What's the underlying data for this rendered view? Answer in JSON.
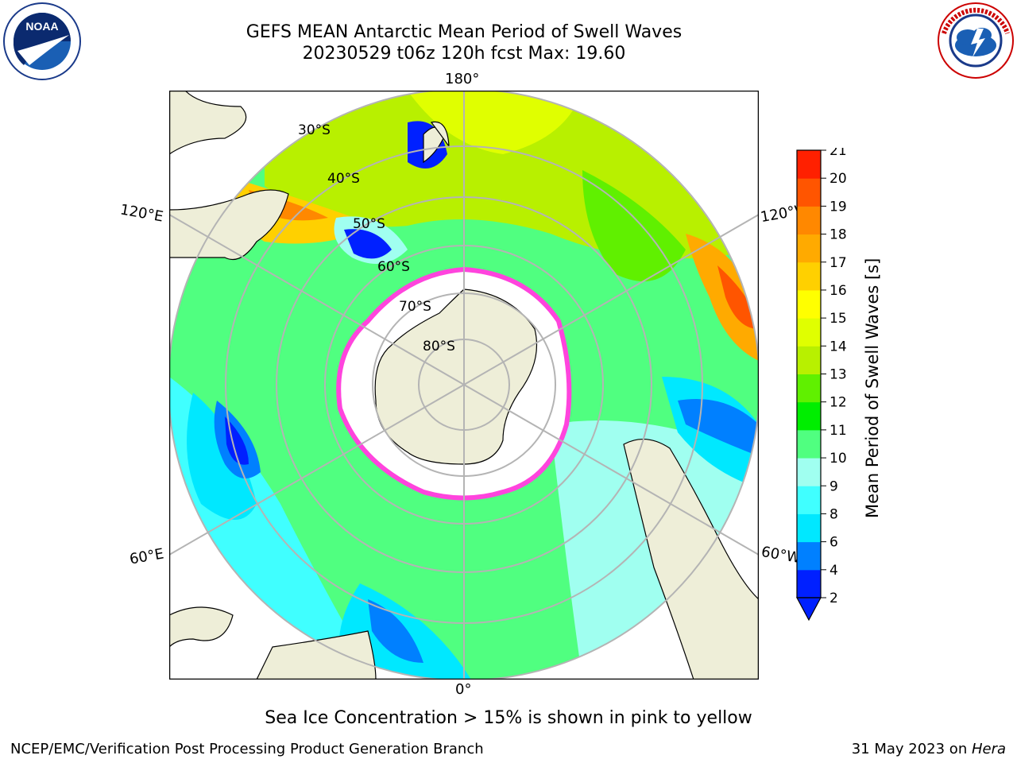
{
  "title": {
    "line1": "GEFS MEAN Antarctic Mean Period of Swell Waves",
    "line2": "20230529 t06z 120h fcst   Max: 19.60"
  },
  "logos": {
    "left": {
      "text": "NOAA",
      "ring_text": "NATIONAL OCEANIC AND ATMOSPHERIC ADMINISTRATION",
      "ring_bottom": "U.S. DEPARTMENT OF COMMERCE"
    },
    "right": {
      "ring_text": "NATIONAL WEATHER SERVICE"
    }
  },
  "map": {
    "projection": "south polar stereographic",
    "longitude_labels": {
      "top": "180°",
      "left_upper": "120°E",
      "right_upper": "120°W",
      "left_lower": "60°E",
      "right_lower": "60°W",
      "bottom": "0°"
    },
    "latitude_labels": [
      "30°S",
      "40°S",
      "50°S",
      "60°S",
      "70°S",
      "80°S"
    ],
    "colors": {
      "land": "#eeeed8",
      "ice": "#ffffff",
      "ice_edge": "#ff44dd",
      "grid": "#b4b4b4"
    }
  },
  "colorbar": {
    "label": "Mean Period of Swell Waves [s]",
    "ticks": [
      "2",
      "4",
      "6",
      "8",
      "9",
      "10",
      "11",
      "12",
      "13",
      "14",
      "15",
      "16",
      "17",
      "18",
      "19",
      "20",
      "21"
    ],
    "colors": [
      "#0020ff",
      "#0080ff",
      "#00e8ff",
      "#40ffff",
      "#a0fff0",
      "#50ff80",
      "#00ee00",
      "#60f000",
      "#b8f000",
      "#e0ff00",
      "#ffff00",
      "#ffd000",
      "#ffaa00",
      "#ff8800",
      "#ff5500",
      "#ff2000"
    ],
    "extend": "min"
  },
  "caption": "Sea Ice Concentration > 15% is shown in pink to yellow",
  "footer": {
    "left": "NCEP/EMC/Verification Post Processing Product Generation Branch",
    "right_prefix": "31 May 2023 on ",
    "right_host": "Hera"
  }
}
